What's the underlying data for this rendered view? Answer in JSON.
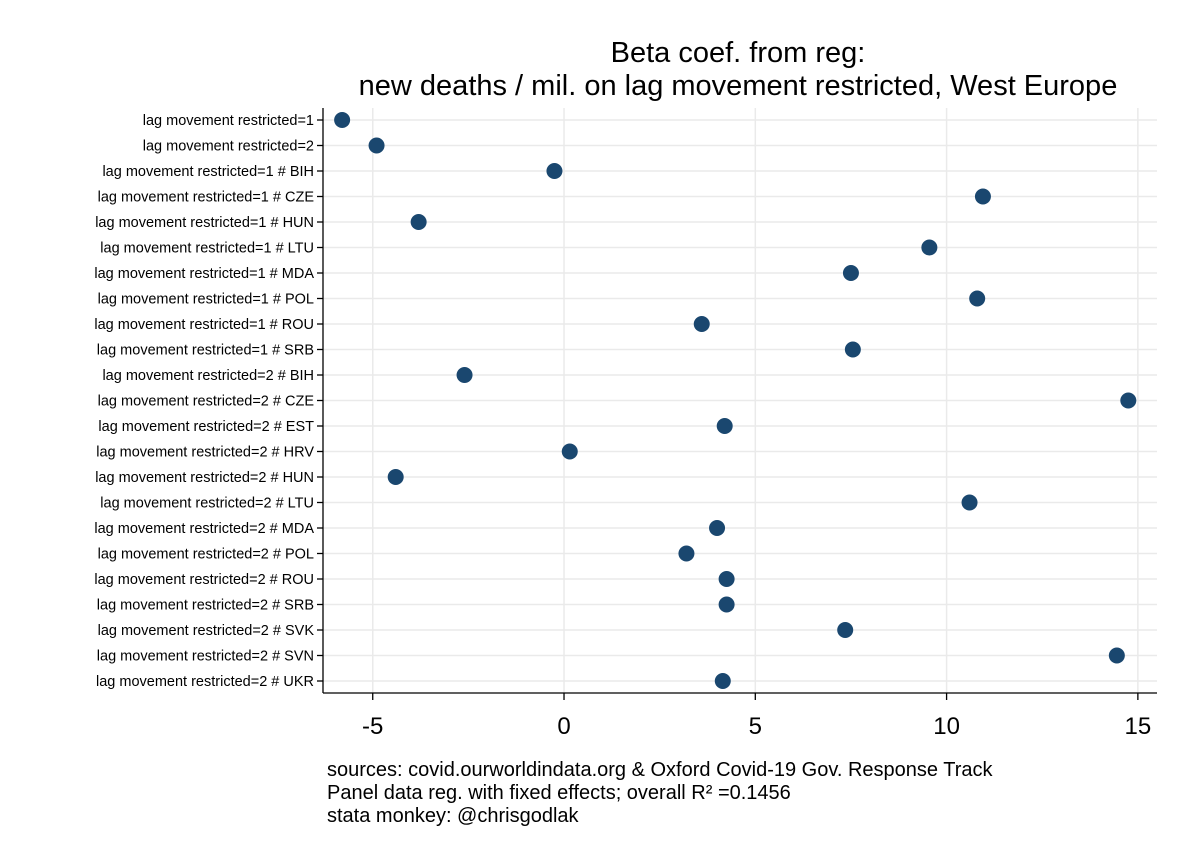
{
  "chart_data": {
    "type": "scatter",
    "title": [
      "Beta coef. from reg:",
      "new deaths / mil. on lag movement restricted, West Europe"
    ],
    "xlabel": "",
    "ylabel": "",
    "xlim": [
      -6.3,
      15.5
    ],
    "xticks": [
      -5,
      0,
      5,
      10,
      15
    ],
    "grid": true,
    "marker_color": "#1a476f",
    "categories": [
      "lag movement restricted=1",
      "lag movement restricted=2",
      "lag movement restricted=1 # BIH",
      "lag movement restricted=1 # CZE",
      "lag movement restricted=1 # HUN",
      "lag movement restricted=1 # LTU",
      "lag movement restricted=1 # MDA",
      "lag movement restricted=1 # POL",
      "lag movement restricted=1 # ROU",
      "lag movement restricted=1 # SRB",
      "lag movement restricted=2 # BIH",
      "lag movement restricted=2 # CZE",
      "lag movement restricted=2 # EST",
      "lag movement restricted=2 # HRV",
      "lag movement restricted=2 # HUN",
      "lag movement restricted=2 # LTU",
      "lag movement restricted=2 # MDA",
      "lag movement restricted=2 # POL",
      "lag movement restricted=2 # ROU",
      "lag movement restricted=2 # SRB",
      "lag movement restricted=2 # SVK",
      "lag movement restricted=2 # SVN",
      "lag movement restricted=2 # UKR"
    ],
    "values": [
      -5.8,
      -4.9,
      -0.25,
      10.95,
      -3.8,
      9.55,
      7.5,
      10.8,
      3.6,
      7.55,
      -2.6,
      14.75,
      4.2,
      0.15,
      -4.4,
      10.6,
      4.0,
      3.2,
      4.25,
      4.25,
      7.35,
      14.45,
      4.15
    ],
    "notes": [
      "sources: covid.ourworldindata.org & Oxford Covid-19 Gov. Response Track",
      "Panel data reg. with fixed effects; overall R² =0.1456",
      "stata monkey: @chrisgodlak"
    ]
  }
}
